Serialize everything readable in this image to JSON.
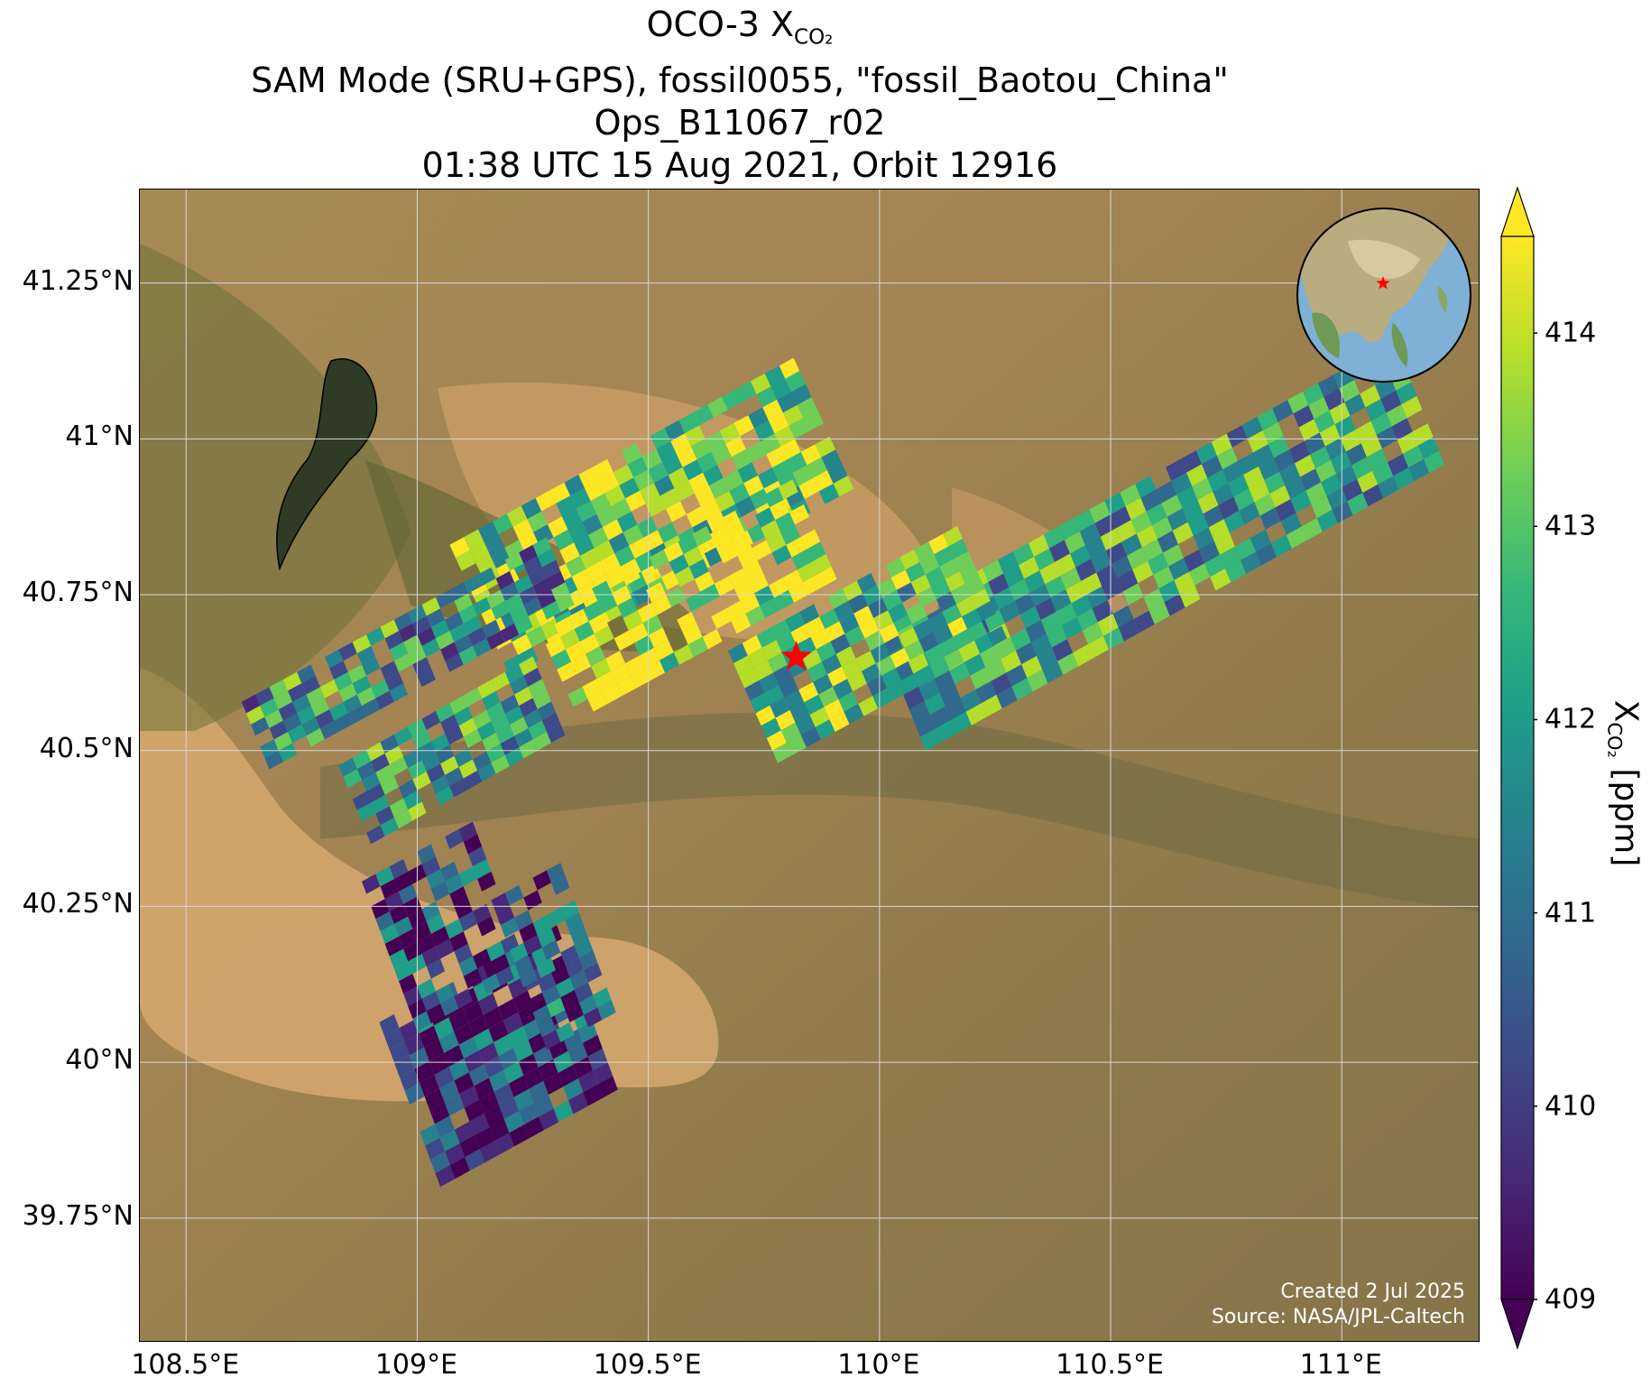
{
  "title": {
    "line1_main": "OCO-3 X",
    "line1_sub": "CO₂",
    "line2": "SAM Mode (SRU+GPS), fossil0055, \"fossil_Baotou_China\"",
    "line3": "Ops_B11067_r02",
    "line4": "01:38 UTC 15 Aug 2021, Orbit 12916"
  },
  "map": {
    "lon_range": [
      108.4,
      111.3
    ],
    "lat_range": [
      39.55,
      41.4
    ],
    "x_ticks": [
      "108.5°E",
      "109°E",
      "109.5°E",
      "110°E",
      "110.5°E",
      "111°E"
    ],
    "x_tick_values": [
      108.5,
      109.0,
      109.5,
      110.0,
      110.5,
      111.0
    ],
    "y_ticks": [
      "41.25°N",
      "41°N",
      "40.75°N",
      "40.5°N",
      "40.25°N",
      "40°N",
      "39.75°N"
    ],
    "y_tick_values": [
      41.25,
      41.0,
      40.75,
      40.5,
      40.25,
      40.0,
      39.75
    ],
    "grid": true,
    "target_marker": {
      "lon": 109.82,
      "lat": 40.65,
      "symbol": "star",
      "color": "#ff0000"
    }
  },
  "credits": {
    "created": "Created 2 Jul 2025",
    "source": "Source: NASA/JPL-Caltech"
  },
  "colorbar": {
    "colormap": "viridis",
    "min": 409,
    "max": 414.5,
    "extend": "both",
    "tick_values": [
      409,
      410,
      411,
      412,
      413,
      414
    ],
    "ticks": [
      "409",
      "410",
      "411",
      "412",
      "413",
      "414"
    ],
    "label_main": "X",
    "label_sub": "CO₂",
    "label_unit": " [ppm]"
  },
  "inset": {
    "description": "orthographic globe centered on East Asia",
    "marker_color": "#ff0000"
  },
  "colors": {
    "viridis": [
      "#440154",
      "#482878",
      "#3e4989",
      "#31688e",
      "#26828e",
      "#1f9e89",
      "#35b779",
      "#6ece58",
      "#b5de2b",
      "#fde725"
    ],
    "desert": "#c9a46a",
    "vegetation": "#5e6b34"
  }
}
